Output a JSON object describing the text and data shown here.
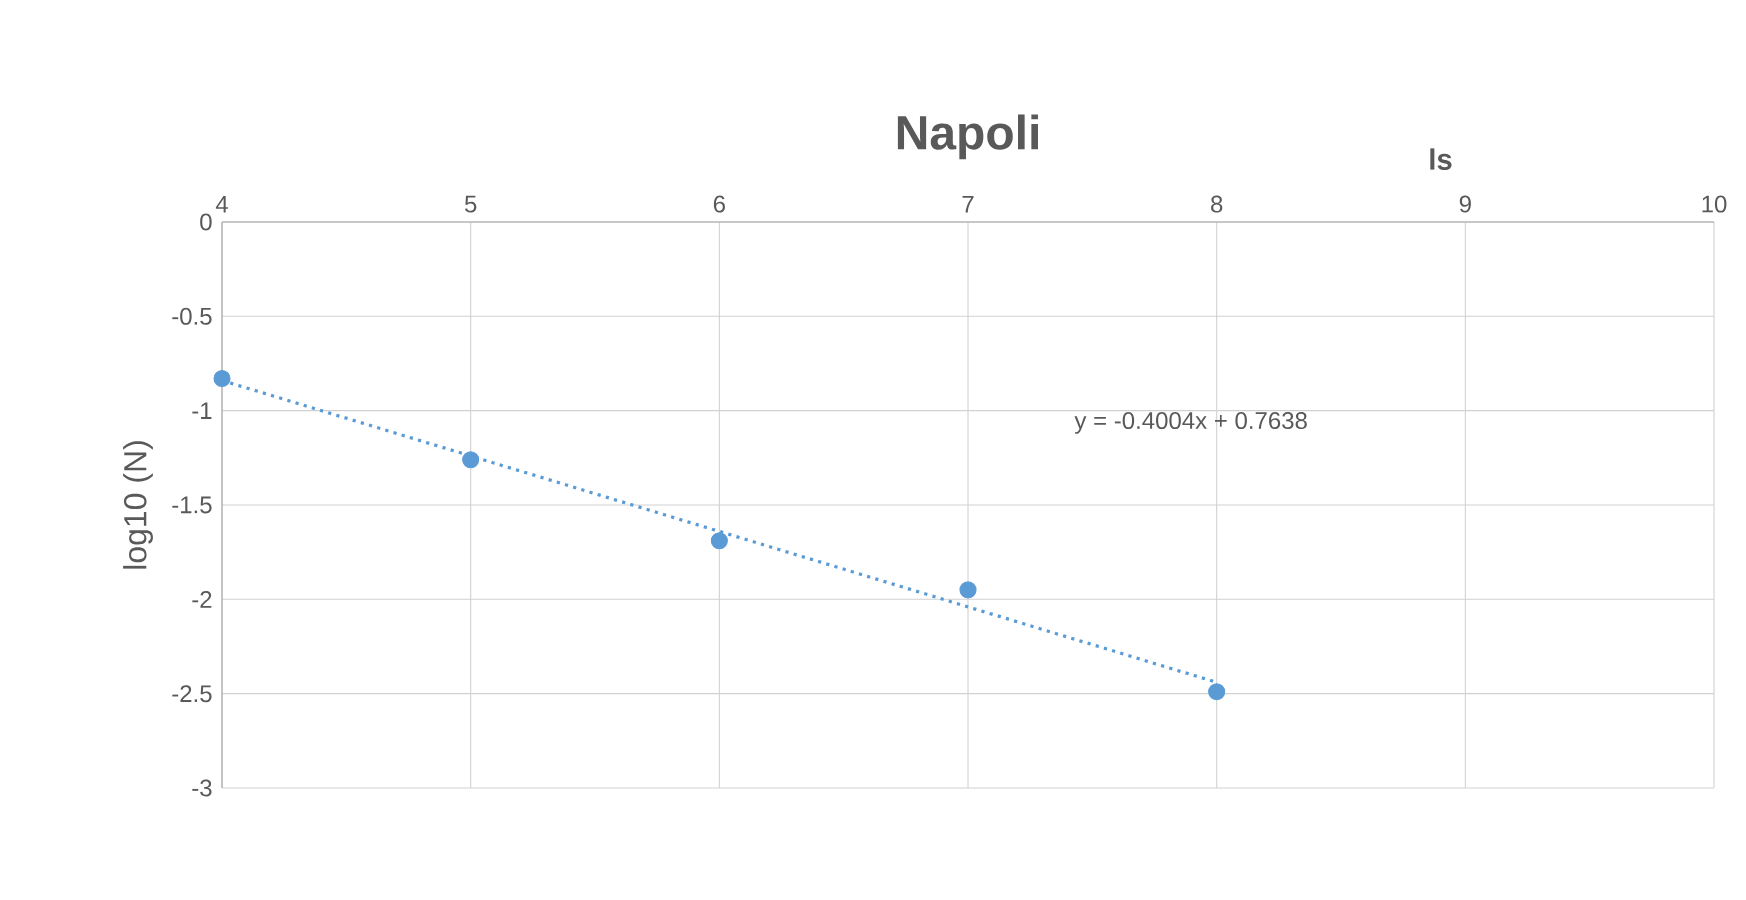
{
  "chart_data": {
    "type": "scatter",
    "title": "Napoli",
    "xlabel": "ls",
    "ylabel": "log10 (N)",
    "xlim": [
      4,
      10
    ],
    "xticks": [
      4,
      5,
      6,
      7,
      8,
      9,
      10
    ],
    "ylim": [
      -3,
      0
    ],
    "yticks": [
      0,
      -0.5,
      -1,
      -1.5,
      -2,
      -2.5,
      -3
    ],
    "grid": true,
    "marker": "circle",
    "series": [
      {
        "color": "#5b9bd5",
        "x": [
          4,
          5,
          6,
          7,
          8
        ],
        "values": [
          -0.83,
          -1.26,
          -1.69,
          -1.95,
          -2.49
        ]
      },
      {
        "type": "line",
        "color": "#5b9bd5",
        "line_style": "dotted",
        "marker": "none",
        "x": [
          4,
          8
        ],
        "values": [
          -0.84,
          -2.44
        ]
      }
    ],
    "annotations": [
      "y = -0.4004x + 0.7638"
    ]
  }
}
